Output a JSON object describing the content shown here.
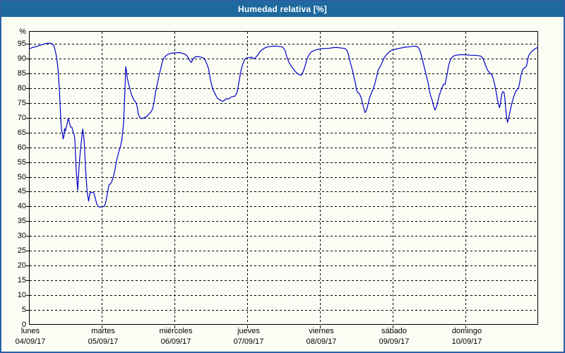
{
  "window": {
    "title": "Humedad relativa [%]"
  },
  "colors": {
    "titlebar_bg": "#1E6A9F",
    "titlebar_text": "#FFFFFF",
    "page_border": "#2D5FA6",
    "page_bg": "#FBFDF5",
    "grid": "#000000",
    "axis": "#000000",
    "line": "#0000C8",
    "label_text": "#000000"
  },
  "chart_data": {
    "type": "line",
    "title": "Humedad relativa [%]",
    "xlabel": "",
    "ylabel": "%",
    "ylim": [
      0,
      99
    ],
    "yticks": [
      0,
      5,
      10,
      15,
      20,
      25,
      30,
      35,
      40,
      45,
      50,
      55,
      60,
      65,
      70,
      75,
      80,
      85,
      90,
      95
    ],
    "grid": "dashed",
    "legend_position": "none",
    "x_axis_unit": "days",
    "x_range_days": [
      0,
      7
    ],
    "x_categories": [
      {
        "day": "lunes",
        "date": "04/09/17"
      },
      {
        "day": "martes",
        "date": "05/09/17"
      },
      {
        "day": "miércoles",
        "date": "06/09/17"
      },
      {
        "day": "jueves",
        "date": "07/09/17"
      },
      {
        "day": "viernes",
        "date": "08/09/17"
      },
      {
        "day": "sábado",
        "date": "09/09/17"
      },
      {
        "day": "domingo",
        "date": "10/09/17"
      }
    ],
    "series": [
      {
        "name": "Humedad relativa",
        "color": "#0000C8",
        "points": [
          [
            0.0,
            93.3
          ],
          [
            0.06,
            93.8
          ],
          [
            0.13,
            94.3
          ],
          [
            0.18,
            94.7
          ],
          [
            0.22,
            95.0
          ],
          [
            0.26,
            95.2
          ],
          [
            0.3,
            95.2
          ],
          [
            0.32,
            94.9
          ],
          [
            0.34,
            94.5
          ],
          [
            0.36,
            92.8
          ],
          [
            0.38,
            90.5
          ],
          [
            0.4,
            86.5
          ],
          [
            0.42,
            78.5
          ],
          [
            0.44,
            68.5
          ],
          [
            0.45,
            65.4
          ],
          [
            0.46,
            65.0
          ],
          [
            0.47,
            62.8
          ],
          [
            0.48,
            63.6
          ],
          [
            0.49,
            66.3
          ],
          [
            0.5,
            65.4
          ],
          [
            0.52,
            67.5
          ],
          [
            0.54,
            69.8
          ],
          [
            0.56,
            68.0
          ],
          [
            0.57,
            66.9
          ],
          [
            0.59,
            66.8
          ],
          [
            0.61,
            64.8
          ],
          [
            0.62,
            64.3
          ],
          [
            0.63,
            63.0
          ],
          [
            0.65,
            52.0
          ],
          [
            0.67,
            45.4
          ],
          [
            0.68,
            50.0
          ],
          [
            0.7,
            57.0
          ],
          [
            0.72,
            62.0
          ],
          [
            0.74,
            66.2
          ],
          [
            0.76,
            62.0
          ],
          [
            0.78,
            52.0
          ],
          [
            0.8,
            45.0
          ],
          [
            0.82,
            41.8
          ],
          [
            0.84,
            44.6
          ],
          [
            0.86,
            44.8
          ],
          [
            0.89,
            44.6
          ],
          [
            0.91,
            43.0
          ],
          [
            0.93,
            41.0
          ],
          [
            0.95,
            40.0
          ],
          [
            0.98,
            39.8
          ],
          [
            1.01,
            39.9
          ],
          [
            1.04,
            40.1
          ],
          [
            1.06,
            42.0
          ],
          [
            1.08,
            44.5
          ],
          [
            1.1,
            47.3
          ],
          [
            1.12,
            47.6
          ],
          [
            1.14,
            48.5
          ],
          [
            1.16,
            50.0
          ],
          [
            1.18,
            52.0
          ],
          [
            1.2,
            55.0
          ],
          [
            1.23,
            58.0
          ],
          [
            1.26,
            60.5
          ],
          [
            1.28,
            63.0
          ],
          [
            1.3,
            68.0
          ],
          [
            1.31,
            73.0
          ],
          [
            1.32,
            80.0
          ],
          [
            1.33,
            87.3
          ],
          [
            1.34,
            86.0
          ],
          [
            1.35,
            83.5
          ],
          [
            1.37,
            81.5
          ],
          [
            1.39,
            79.5
          ],
          [
            1.41,
            77.8
          ],
          [
            1.43,
            76.6
          ],
          [
            1.45,
            75.8
          ],
          [
            1.47,
            75.2
          ],
          [
            1.49,
            73.5
          ],
          [
            1.5,
            71.5
          ],
          [
            1.52,
            70.2
          ],
          [
            1.54,
            69.8
          ],
          [
            1.56,
            69.7
          ],
          [
            1.58,
            70.0
          ],
          [
            1.6,
            70.2
          ],
          [
            1.62,
            70.4
          ],
          [
            1.64,
            71.0
          ],
          [
            1.66,
            71.5
          ],
          [
            1.68,
            72.0
          ],
          [
            1.7,
            73.0
          ],
          [
            1.72,
            75.5
          ],
          [
            1.74,
            78.6
          ],
          [
            1.76,
            81.0
          ],
          [
            1.79,
            84.5
          ],
          [
            1.82,
            87.5
          ],
          [
            1.84,
            89.5
          ],
          [
            1.87,
            90.6
          ],
          [
            1.9,
            91.3
          ],
          [
            1.93,
            91.6
          ],
          [
            1.96,
            91.8
          ],
          [
            2.0,
            91.9
          ],
          [
            2.04,
            92.0
          ],
          [
            2.08,
            92.0
          ],
          [
            2.12,
            91.7
          ],
          [
            2.15,
            91.4
          ],
          [
            2.17,
            91.0
          ],
          [
            2.19,
            90.3
          ],
          [
            2.21,
            89.3
          ],
          [
            2.23,
            88.7
          ],
          [
            2.25,
            89.5
          ],
          [
            2.27,
            90.3
          ],
          [
            2.3,
            90.7
          ],
          [
            2.34,
            90.6
          ],
          [
            2.38,
            90.4
          ],
          [
            2.41,
            90.0
          ],
          [
            2.44,
            88.5
          ],
          [
            2.47,
            86.5
          ],
          [
            2.49,
            83.5
          ],
          [
            2.51,
            81.2
          ],
          [
            2.53,
            79.5
          ],
          [
            2.56,
            78.0
          ],
          [
            2.59,
            76.6
          ],
          [
            2.62,
            76.1
          ],
          [
            2.65,
            75.7
          ],
          [
            2.67,
            75.6
          ],
          [
            2.69,
            75.9
          ],
          [
            2.71,
            76.5
          ],
          [
            2.73,
            76.3
          ],
          [
            2.75,
            76.4
          ],
          [
            2.78,
            77.0
          ],
          [
            2.81,
            77.2
          ],
          [
            2.83,
            77.3
          ],
          [
            2.84,
            77.6
          ],
          [
            2.86,
            78.5
          ],
          [
            2.88,
            81.0
          ],
          [
            2.9,
            84.0
          ],
          [
            2.92,
            86.5
          ],
          [
            2.94,
            88.2
          ],
          [
            2.96,
            89.4
          ],
          [
            2.98,
            90.0
          ],
          [
            3.0,
            90.2
          ],
          [
            3.02,
            90.3
          ],
          [
            3.04,
            90.4
          ],
          [
            3.06,
            90.5
          ],
          [
            3.08,
            90.1
          ],
          [
            3.1,
            90.0
          ],
          [
            3.12,
            90.5
          ],
          [
            3.15,
            91.3
          ],
          [
            3.17,
            92.2
          ],
          [
            3.2,
            92.9
          ],
          [
            3.23,
            93.4
          ],
          [
            3.26,
            93.8
          ],
          [
            3.29,
            94.0
          ],
          [
            3.32,
            94.1
          ],
          [
            3.36,
            94.2
          ],
          [
            3.4,
            94.2
          ],
          [
            3.44,
            94.1
          ],
          [
            3.47,
            94.0
          ],
          [
            3.49,
            93.8
          ],
          [
            3.52,
            92.8
          ],
          [
            3.55,
            90.2
          ],
          [
            3.58,
            88.5
          ],
          [
            3.61,
            87.3
          ],
          [
            3.64,
            86.3
          ],
          [
            3.67,
            85.4
          ],
          [
            3.7,
            84.8
          ],
          [
            3.73,
            84.4
          ],
          [
            3.74,
            84.3
          ],
          [
            3.76,
            85.0
          ],
          [
            3.78,
            86.3
          ],
          [
            3.8,
            87.8
          ],
          [
            3.82,
            89.8
          ],
          [
            3.85,
            91.3
          ],
          [
            3.88,
            92.2
          ],
          [
            3.91,
            92.6
          ],
          [
            3.94,
            92.9
          ],
          [
            3.97,
            93.1
          ],
          [
            4.01,
            93.3
          ],
          [
            4.05,
            93.4
          ],
          [
            4.09,
            93.4
          ],
          [
            4.13,
            93.5
          ],
          [
            4.16,
            93.6
          ],
          [
            4.2,
            93.7
          ],
          [
            4.24,
            93.7
          ],
          [
            4.28,
            93.6
          ],
          [
            4.32,
            93.5
          ],
          [
            4.35,
            93.3
          ],
          [
            4.37,
            92.8
          ],
          [
            4.39,
            91.5
          ],
          [
            4.41,
            89.5
          ],
          [
            4.43,
            87.5
          ],
          [
            4.45,
            85.8
          ],
          [
            4.47,
            83.5
          ],
          [
            4.49,
            81.5
          ],
          [
            4.5,
            79.5
          ],
          [
            4.52,
            78.5
          ],
          [
            4.54,
            78.2
          ],
          [
            4.56,
            77.2
          ],
          [
            4.58,
            75.5
          ],
          [
            4.6,
            73.5
          ],
          [
            4.62,
            71.7
          ],
          [
            4.64,
            72.5
          ],
          [
            4.66,
            74.5
          ],
          [
            4.68,
            76.5
          ],
          [
            4.71,
            78.5
          ],
          [
            4.74,
            80.2
          ],
          [
            4.76,
            82.0
          ],
          [
            4.78,
            84.0
          ],
          [
            4.8,
            86.0
          ],
          [
            4.82,
            87.0
          ],
          [
            4.84,
            87.8
          ],
          [
            4.86,
            89.0
          ],
          [
            4.89,
            90.5
          ],
          [
            4.92,
            91.5
          ],
          [
            4.95,
            92.2
          ],
          [
            4.98,
            92.7
          ],
          [
            5.01,
            93.0
          ],
          [
            5.04,
            93.2
          ],
          [
            5.08,
            93.4
          ],
          [
            5.12,
            93.6
          ],
          [
            5.16,
            93.8
          ],
          [
            5.19,
            93.9
          ],
          [
            5.23,
            94.0
          ],
          [
            5.27,
            94.1
          ],
          [
            5.3,
            94.2
          ],
          [
            5.33,
            94.1
          ],
          [
            5.35,
            93.8
          ],
          [
            5.37,
            93.0
          ],
          [
            5.39,
            91.5
          ],
          [
            5.41,
            89.5
          ],
          [
            5.43,
            87.5
          ],
          [
            5.45,
            85.5
          ],
          [
            5.47,
            83.5
          ],
          [
            5.49,
            81.5
          ],
          [
            5.5,
            79.8
          ],
          [
            5.52,
            77.5
          ],
          [
            5.54,
            76.2
          ],
          [
            5.56,
            74.2
          ],
          [
            5.58,
            72.6
          ],
          [
            5.6,
            73.5
          ],
          [
            5.62,
            75.5
          ],
          [
            5.64,
            77.5
          ],
          [
            5.66,
            79.0
          ],
          [
            5.68,
            80.2
          ],
          [
            5.7,
            81.3
          ],
          [
            5.71,
            81.4
          ],
          [
            5.72,
            81.3
          ],
          [
            5.73,
            82.5
          ],
          [
            5.75,
            85.0
          ],
          [
            5.77,
            87.8
          ],
          [
            5.79,
            89.3
          ],
          [
            5.81,
            90.2
          ],
          [
            5.83,
            90.7
          ],
          [
            5.85,
            91.0
          ],
          [
            5.89,
            91.2
          ],
          [
            5.93,
            91.3
          ],
          [
            5.98,
            91.3
          ],
          [
            6.03,
            91.2
          ],
          [
            6.08,
            91.1
          ],
          [
            6.13,
            91.1
          ],
          [
            6.17,
            91.0
          ],
          [
            6.2,
            90.9
          ],
          [
            6.22,
            90.7
          ],
          [
            6.24,
            90.0
          ],
          [
            6.26,
            88.8
          ],
          [
            6.28,
            87.5
          ],
          [
            6.3,
            86.3
          ],
          [
            6.32,
            85.5
          ],
          [
            6.34,
            85.0
          ],
          [
            6.36,
            84.6
          ],
          [
            6.38,
            83.5
          ],
          [
            6.4,
            81.5
          ],
          [
            6.42,
            79.0
          ],
          [
            6.44,
            76.2
          ],
          [
            6.46,
            74.2
          ],
          [
            6.47,
            73.4
          ],
          [
            6.48,
            74.5
          ],
          [
            6.49,
            76.5
          ],
          [
            6.5,
            78.0
          ],
          [
            6.51,
            78.7
          ],
          [
            6.52,
            78.8
          ],
          [
            6.53,
            78.6
          ],
          [
            6.54,
            77.0
          ],
          [
            6.55,
            74.5
          ],
          [
            6.56,
            71.5
          ],
          [
            6.57,
            69.5
          ],
          [
            6.58,
            68.4
          ],
          [
            6.6,
            70.5
          ],
          [
            6.62,
            73.0
          ],
          [
            6.64,
            75.0
          ],
          [
            6.66,
            76.8
          ],
          [
            6.68,
            78.2
          ],
          [
            6.7,
            79.2
          ],
          [
            6.72,
            79.8
          ],
          [
            6.73,
            80.0
          ],
          [
            6.75,
            82.5
          ],
          [
            6.76,
            84.0
          ],
          [
            6.78,
            85.8
          ],
          [
            6.79,
            86.4
          ],
          [
            6.81,
            86.8
          ],
          [
            6.83,
            87.2
          ],
          [
            6.84,
            87.5
          ],
          [
            6.86,
            90.0
          ],
          [
            6.87,
            91.0
          ],
          [
            6.9,
            92.1
          ],
          [
            6.93,
            92.8
          ],
          [
            6.95,
            93.2
          ],
          [
            6.98,
            93.6
          ],
          [
            7.0,
            93.8
          ]
        ]
      }
    ]
  }
}
